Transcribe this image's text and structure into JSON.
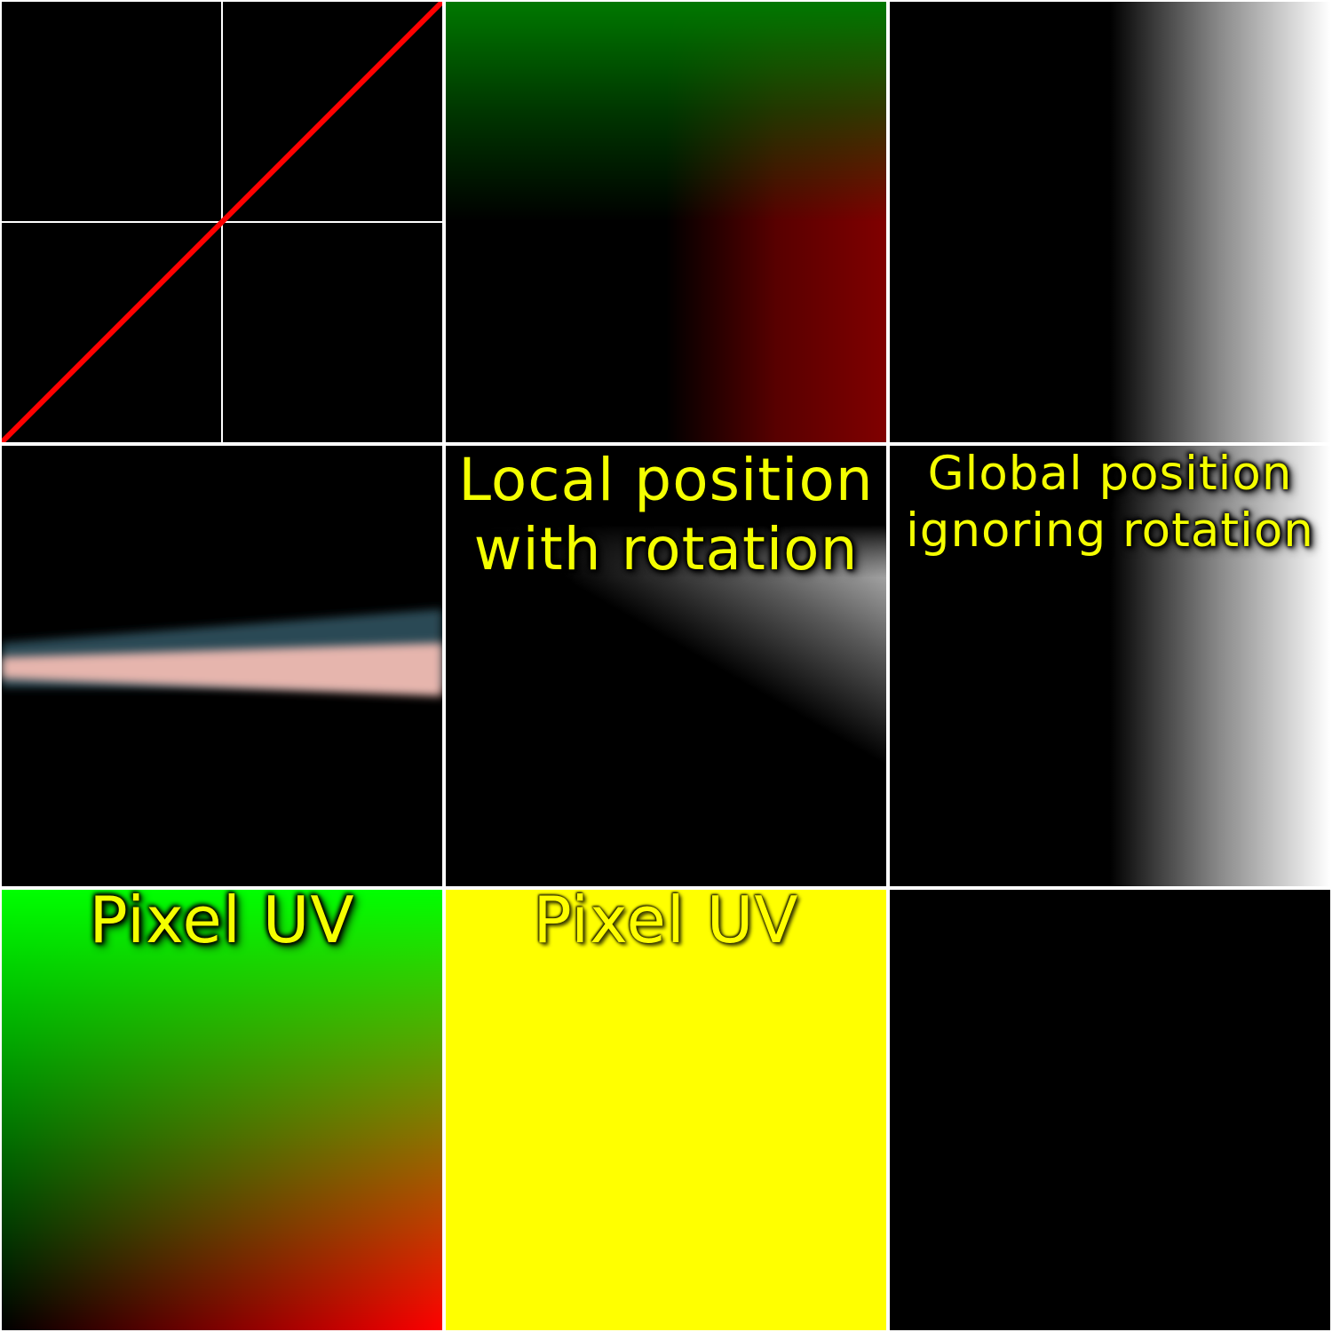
{
  "colors": {
    "background": "#000000",
    "divider": "#ffffff",
    "line": "#ff0000",
    "caption": "#f4ff00",
    "stripe_top": "#2a4a55",
    "stripe_main": "#e6b5ad",
    "solid_fill": "#ffff00"
  },
  "panels": {
    "local_with_rotation": {
      "caption_line1": "Local position",
      "caption_line2": "with rotation"
    },
    "global_ignoring_rotation": {
      "caption_line1": "Global position",
      "caption_line2": "ignoring rotation"
    },
    "pixel_uv_gradient": {
      "caption": "Pixel UV"
    },
    "pixel_uv_solid": {
      "caption": "Pixel UV"
    }
  }
}
